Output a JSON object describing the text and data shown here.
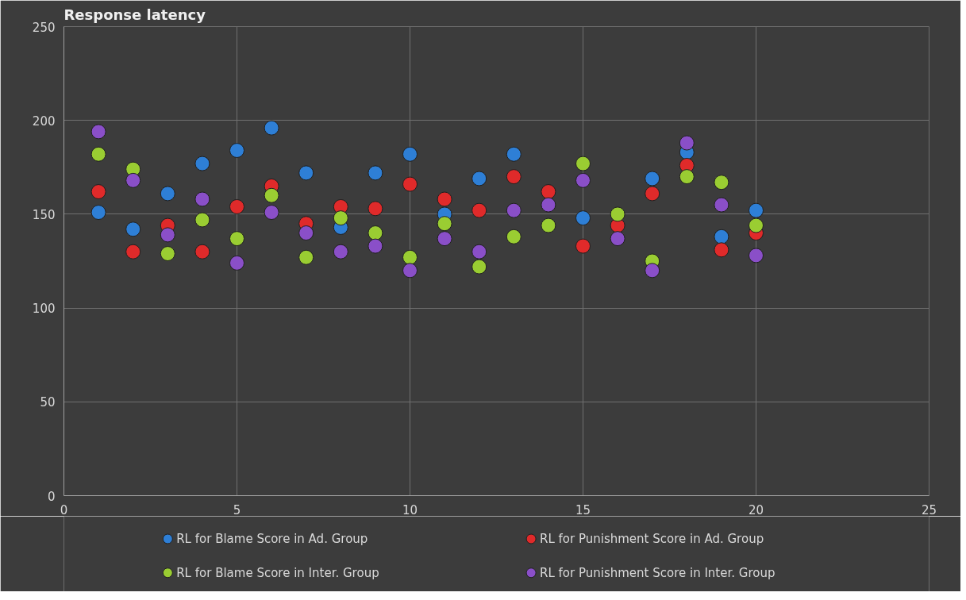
{
  "chart_data": {
    "type": "scatter",
    "title": "Response latency",
    "x": [
      1,
      2,
      3,
      4,
      5,
      6,
      7,
      8,
      9,
      10,
      11,
      12,
      13,
      14,
      15,
      16,
      17,
      18,
      19,
      20
    ],
    "series": [
      {
        "name": "RL for Blame Score in Ad. Group",
        "color": "#2e7fd6",
        "values": [
          151,
          142,
          161,
          177,
          184,
          196,
          172,
          143,
          172,
          182,
          150,
          169,
          182,
          null,
          148,
          null,
          169,
          183,
          138,
          152
        ]
      },
      {
        "name": "RL for Punishment Score in Ad. Group",
        "color": "#e02a2a",
        "values": [
          162,
          130,
          144,
          130,
          154,
          165,
          145,
          154,
          153,
          166,
          158,
          152,
          170,
          162,
          133,
          144,
          161,
          176,
          131,
          140
        ]
      },
      {
        "name": "RL for Blame Score in Inter. Group",
        "color": "#9acd32",
        "values": [
          182,
          174,
          129,
          147,
          137,
          160,
          127,
          148,
          140,
          127,
          145,
          122,
          138,
          144,
          177,
          150,
          125,
          170,
          167,
          144
        ]
      },
      {
        "name": "RL for Punishment Score in Inter. Group",
        "color": "#8a4fc8",
        "values": [
          194,
          168,
          139,
          158,
          124,
          151,
          140,
          130,
          133,
          120,
          137,
          130,
          152,
          155,
          168,
          137,
          120,
          188,
          155,
          128
        ]
      }
    ],
    "xlim": [
      0,
      25
    ],
    "xticks": [
      0,
      5,
      10,
      15,
      20,
      25
    ],
    "ylim": [
      0,
      250
    ],
    "yticks": [
      0,
      50,
      100,
      150,
      200,
      250
    ],
    "grid": true,
    "legend": "bottom",
    "marker": "circle"
  }
}
